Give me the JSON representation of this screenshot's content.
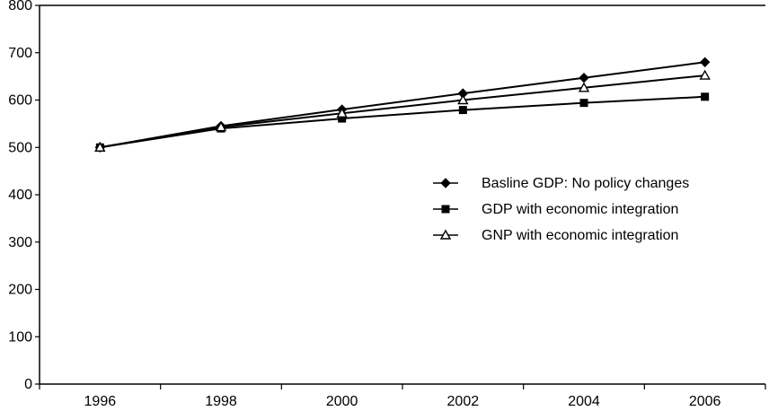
{
  "chart_data": {
    "type": "line",
    "title": "",
    "xlabel": "",
    "ylabel": "",
    "x": [
      "1996",
      "1998",
      "2000",
      "2002",
      "2004",
      "2006"
    ],
    "ylim": [
      0,
      800
    ],
    "yticks": [
      0,
      100,
      200,
      300,
      400,
      500,
      600,
      700,
      800
    ],
    "grid": false,
    "legend_position": "right-center",
    "series": [
      {
        "name": "Basline GDP: No policy changes",
        "marker": "diamond",
        "values": [
          500,
          545,
          580,
          614,
          647,
          680
        ]
      },
      {
        "name": "GDP with economic integration",
        "marker": "square",
        "values": [
          500,
          540,
          561,
          579,
          594,
          607
        ]
      },
      {
        "name": "GNP with economic integration",
        "marker": "triangle-open",
        "values": [
          500,
          543,
          572,
          600,
          626,
          652
        ]
      }
    ]
  }
}
